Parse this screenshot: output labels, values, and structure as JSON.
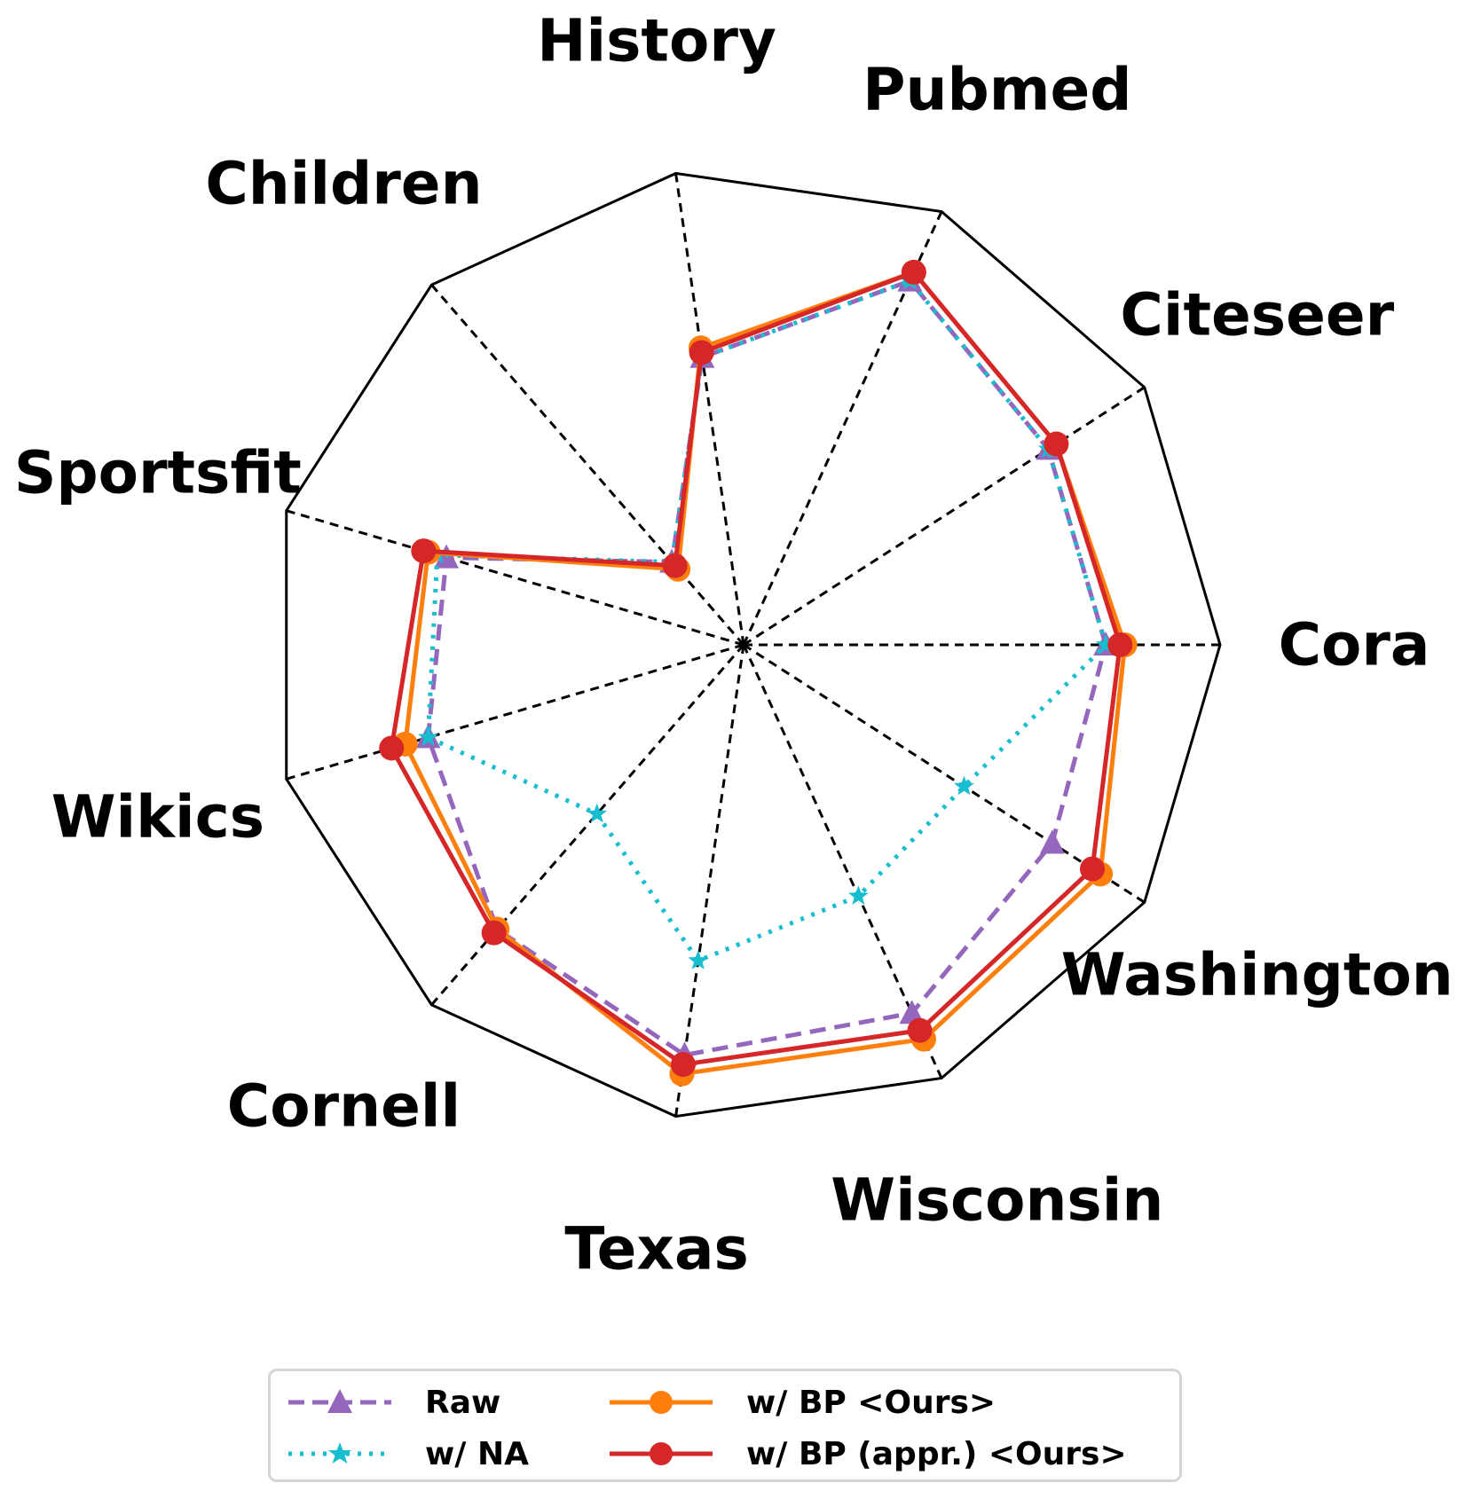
{
  "chart_data": {
    "type": "radar",
    "axes": [
      "Cora",
      "Citeseer",
      "Pubmed",
      "History",
      "Children",
      "Sportsfit",
      "Wikics",
      "Cornell",
      "Texas",
      "Wisconsin",
      "Washington"
    ],
    "range": [
      0,
      1
    ],
    "grid": "polygon outline with dashed spokes",
    "legend_position": "bottom",
    "series": [
      {
        "name": "Raw",
        "color": "#9467bd",
        "line_style": "dashed",
        "marker": "triangle",
        "values": [
          0.76,
          0.76,
          0.84,
          0.61,
          0.23,
          0.65,
          0.69,
          0.79,
          0.87,
          0.85,
          0.77
        ]
      },
      {
        "name": "w/ NA",
        "color": "#17becf",
        "line_style": "dotted",
        "marker": "star",
        "values": [
          0.76,
          0.76,
          0.84,
          0.61,
          0.23,
          0.67,
          0.69,
          0.47,
          0.67,
          0.58,
          0.55
        ]
      },
      {
        "name": "w/ BP <Ours>",
        "color": "#ff7f0e",
        "line_style": "solid",
        "marker": "circle",
        "values": [
          0.8,
          0.78,
          0.86,
          0.63,
          0.21,
          0.69,
          0.74,
          0.79,
          0.91,
          0.91,
          0.89
        ]
      },
      {
        "name": "w/ BP (appr.) <Ours>",
        "color": "#d62728",
        "line_style": "solid",
        "marker": "circle",
        "values": [
          0.79,
          0.78,
          0.86,
          0.62,
          0.22,
          0.7,
          0.77,
          0.8,
          0.89,
          0.89,
          0.87
        ]
      }
    ]
  },
  "legend": {
    "raw": "Raw",
    "na": "w/ NA",
    "bp": "w/ BP <Ours>",
    "bp_appr": "w/ BP (appr.) <Ours>"
  }
}
